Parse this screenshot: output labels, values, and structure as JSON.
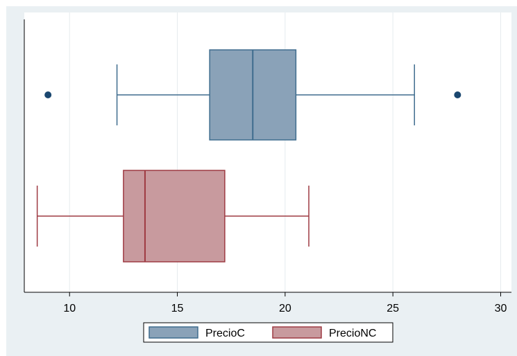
{
  "chart_data": {
    "type": "boxplot",
    "orientation": "horizontal",
    "xlim": [
      7.9,
      30.5
    ],
    "xticks": [
      10,
      15,
      20,
      25,
      30
    ],
    "xtick_labels": [
      "10",
      "15",
      "20",
      "25",
      "30"
    ],
    "grid": true,
    "legend_position": "bottom",
    "series": [
      {
        "name": "PrecioC",
        "color": "#8aa2b8",
        "edge_color": "#3e6c8e",
        "whisker_low": 12.2,
        "q1": 16.5,
        "median": 18.5,
        "q3": 20.5,
        "whisker_high": 26.0,
        "outliers": [
          9.0,
          28.0
        ]
      },
      {
        "name": "PrecioNC",
        "color": "#c89a9e",
        "edge_color": "#9e3a42",
        "whisker_low": 8.5,
        "q1": 12.5,
        "median": 13.5,
        "q3": 17.2,
        "whisker_high": 21.1,
        "outliers": []
      }
    ]
  },
  "colors": {
    "outer_background": "#eaf0f3",
    "plot_background": "#ffffff",
    "grid": "#e6ebee",
    "axis": "#000000"
  }
}
